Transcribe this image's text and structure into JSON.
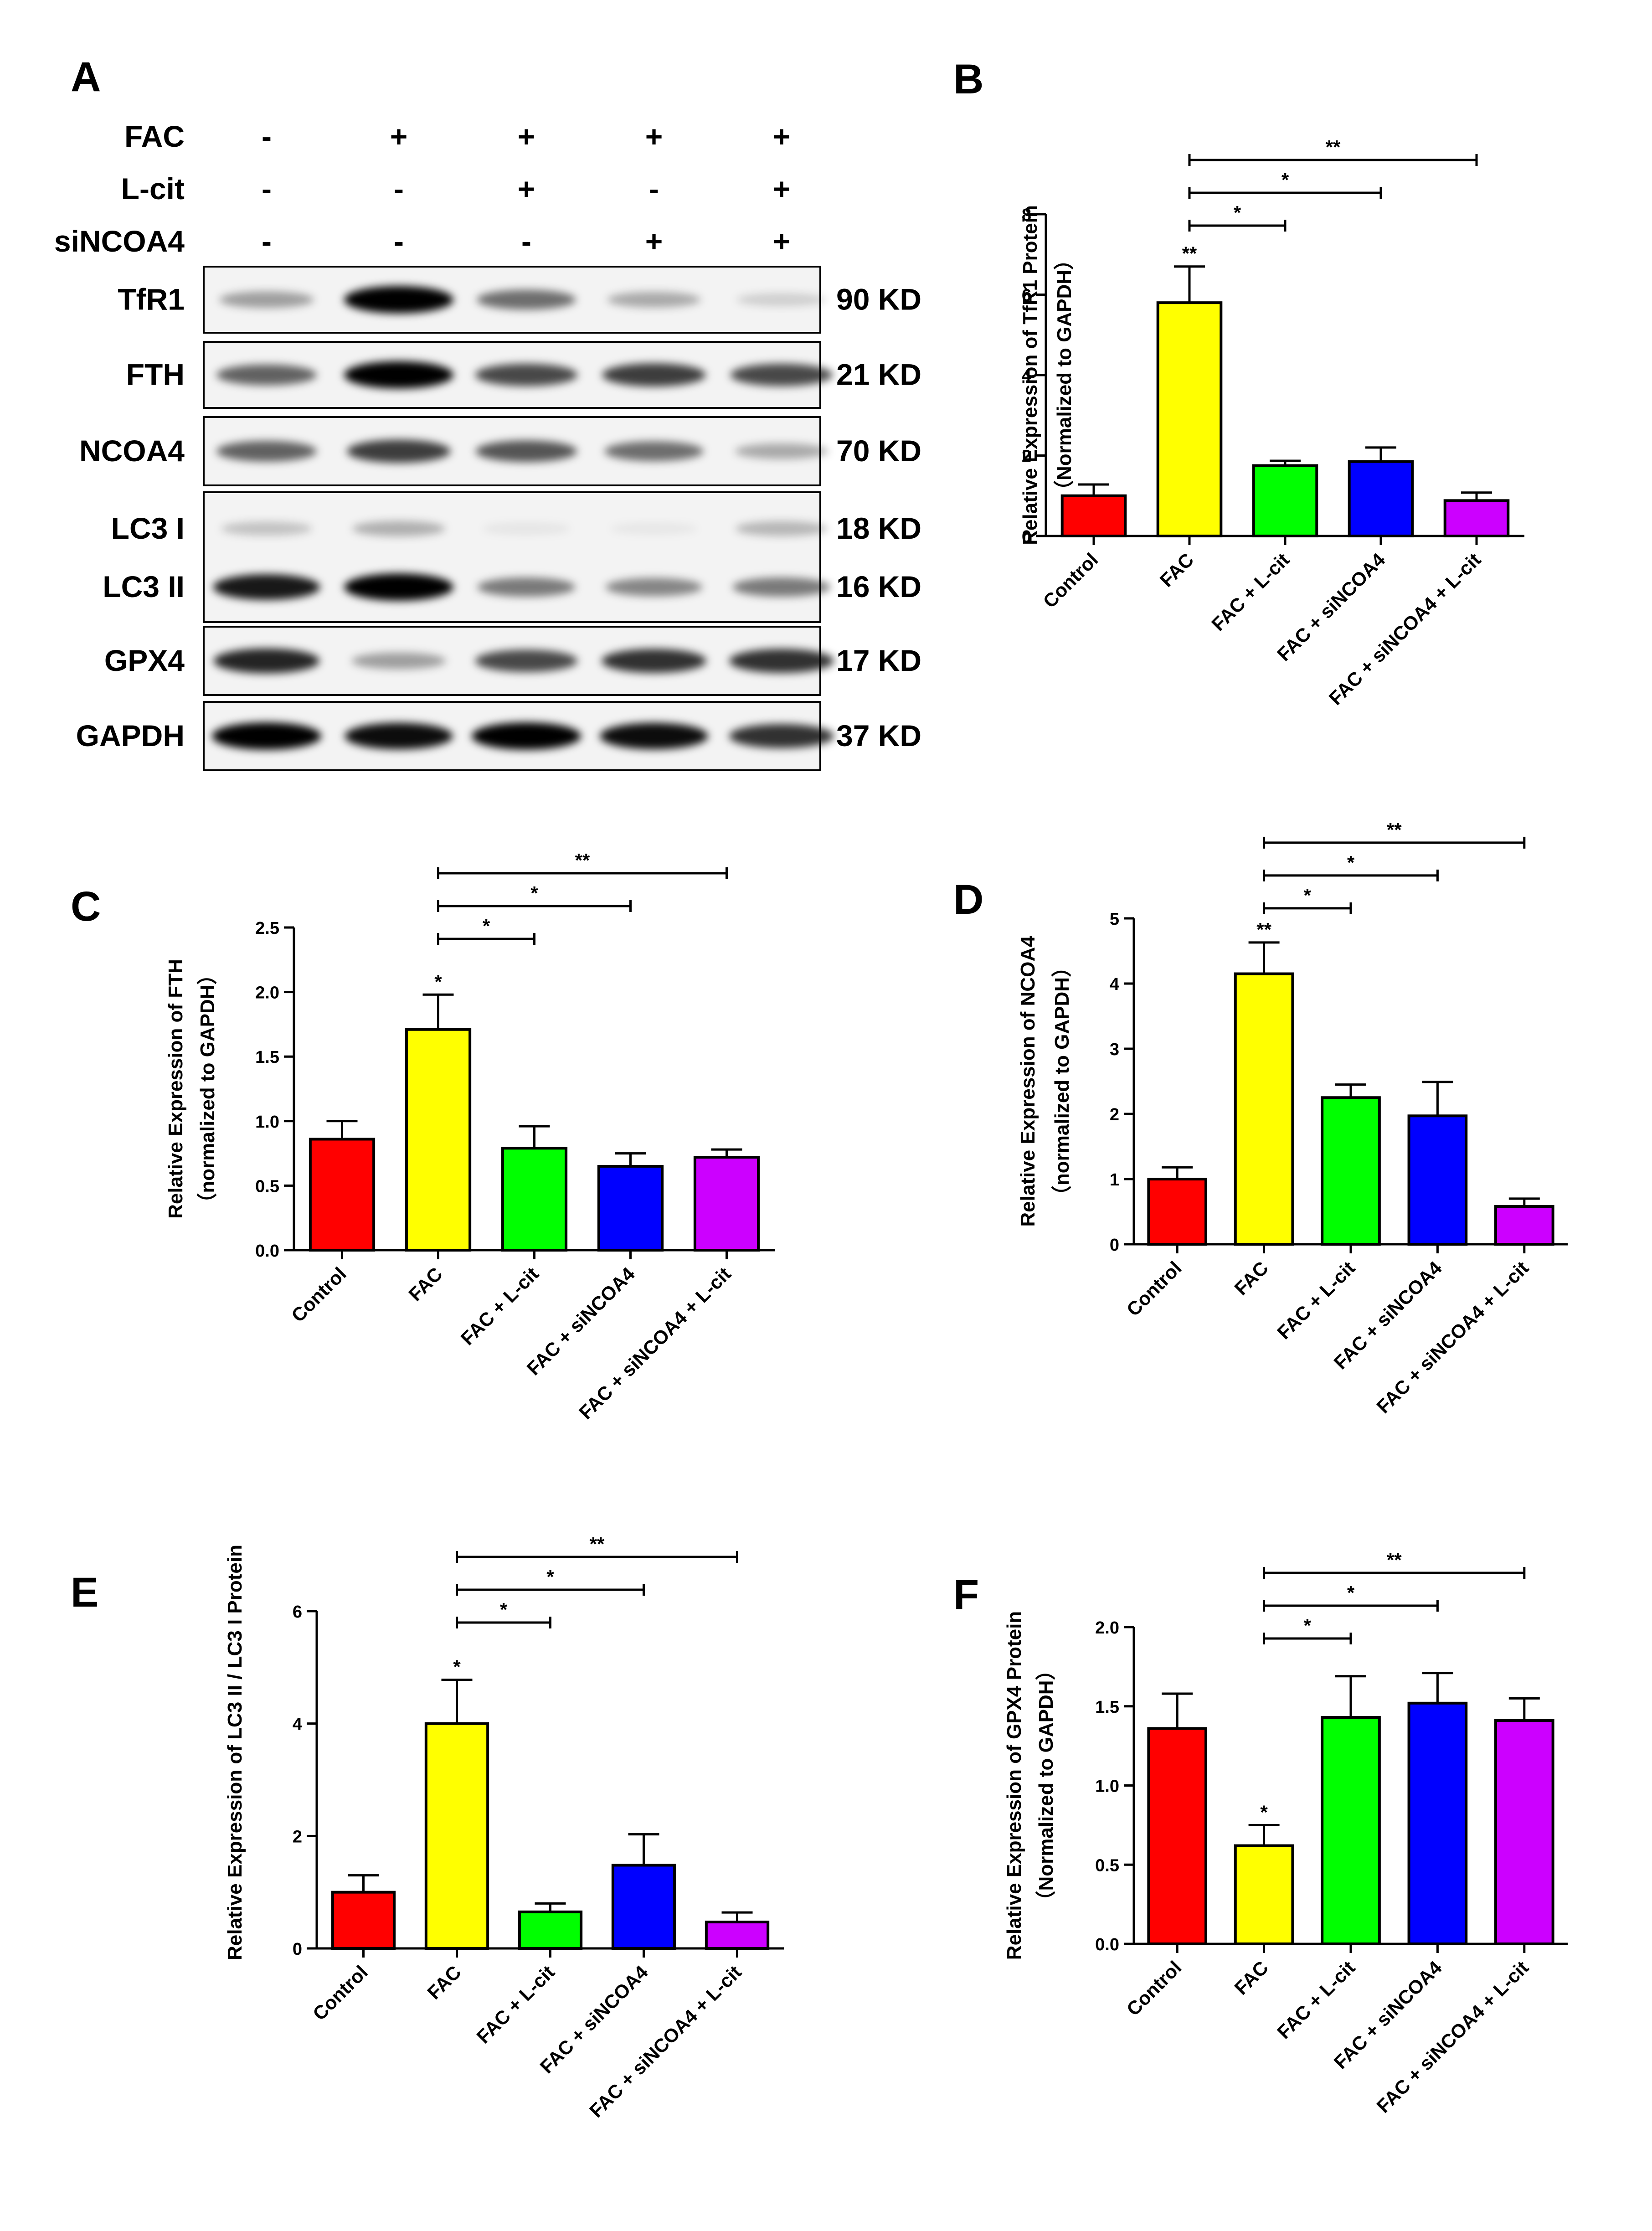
{
  "panel_letters": [
    "A",
    "B",
    "C",
    "D",
    "E",
    "F"
  ],
  "western_blot": {
    "treatments": [
      {
        "label": "FAC",
        "marks": [
          "-",
          "+",
          "+",
          "+",
          "+"
        ]
      },
      {
        "label": "L-cit",
        "marks": [
          "-",
          "-",
          "+",
          "-",
          "+"
        ]
      },
      {
        "label": "siNCOA4",
        "marks": [
          "-",
          "-",
          "-",
          "+",
          "+"
        ]
      }
    ],
    "blots": [
      {
        "rows": [
          {
            "label": "TfR1",
            "size": "90 KD"
          }
        ]
      },
      {
        "rows": [
          {
            "label": "FTH",
            "size": "21 KD"
          }
        ]
      },
      {
        "rows": [
          {
            "label": "NCOA4",
            "size": "70 KD"
          }
        ]
      },
      {
        "rows": [
          {
            "label": "LC3 I",
            "size": "18 KD"
          },
          {
            "label": "LC3 II",
            "size": "16 KD"
          }
        ]
      },
      {
        "rows": [
          {
            "label": "GPX4",
            "size": "17 KD"
          }
        ]
      },
      {
        "rows": [
          {
            "label": "GAPDH",
            "size": "37 KD"
          }
        ]
      }
    ],
    "band_intensity": [
      [
        0.35,
        1.0,
        0.55,
        0.3,
        0.15
      ],
      [
        0.6,
        1.0,
        0.7,
        0.75,
        0.7
      ],
      [
        0.6,
        0.75,
        0.65,
        0.55,
        0.3
      ],
      [
        0.2,
        0.28,
        0.06,
        0.05,
        0.25
      ],
      [
        0.9,
        1.0,
        0.5,
        0.45,
        0.5
      ],
      [
        0.85,
        0.35,
        0.7,
        0.8,
        0.8
      ],
      [
        1.0,
        0.95,
        1.0,
        0.95,
        0.8
      ]
    ]
  },
  "bar_colors": [
    "#ff0000",
    "#ffff00",
    "#00ff00",
    "#0000ff",
    "#cc00ff"
  ],
  "chart_data": [
    {
      "panel": "B",
      "type": "bar",
      "categories": [
        "Control",
        "FAC",
        "FAC + L-cit",
        "FAC + siNCOA4",
        "FAC + siNCOA4 + L-cit"
      ],
      "values": [
        1.0,
        5.8,
        1.75,
        1.85,
        0.88
      ],
      "errors": [
        0.28,
        0.9,
        0.12,
        0.35,
        0.2
      ],
      "ylabel": "Relative Expression of TfR1 Protein",
      "ylabel2": "（Normalized to GAPDH）",
      "ylim": [
        0,
        8
      ],
      "yticks": [
        "0",
        "2",
        "4",
        "6",
        "8"
      ],
      "bar_marks": [
        "",
        "**",
        "",
        "",
        ""
      ],
      "comparisons": [
        {
          "from": 1,
          "to": 2,
          "mark": "*"
        },
        {
          "from": 1,
          "to": 3,
          "mark": "*"
        },
        {
          "from": 1,
          "to": 4,
          "mark": "**"
        }
      ]
    },
    {
      "panel": "C",
      "type": "bar",
      "categories": [
        "Control",
        "FAC",
        "FAC + L-cit",
        "FAC + siNCOA4",
        "FAC + siNCOA4 + L-cit"
      ],
      "values": [
        0.86,
        1.71,
        0.79,
        0.65,
        0.72
      ],
      "errors": [
        0.14,
        0.27,
        0.17,
        0.1,
        0.06
      ],
      "ylabel": "Relative Expression of FTH",
      "ylabel2": "（normalized to GAPDH）",
      "ylim": [
        0,
        2.5
      ],
      "yticks": [
        "0.0",
        "0.5",
        "1.0",
        "1.5",
        "2.0",
        "2.5"
      ],
      "bar_marks": [
        "",
        "*",
        "",
        "",
        ""
      ],
      "comparisons": [
        {
          "from": 1,
          "to": 2,
          "mark": "*"
        },
        {
          "from": 1,
          "to": 3,
          "mark": "*"
        },
        {
          "from": 1,
          "to": 4,
          "mark": "**"
        }
      ]
    },
    {
      "panel": "D",
      "type": "bar",
      "categories": [
        "Control",
        "FAC",
        "FAC + L-cit",
        "FAC + siNCOA4",
        "FAC + siNCOA4 + L-cit"
      ],
      "values": [
        1.0,
        4.15,
        2.25,
        1.97,
        0.58
      ],
      "errors": [
        0.18,
        0.48,
        0.2,
        0.52,
        0.12
      ],
      "ylabel": "Relative Expression of NCOA4",
      "ylabel2": "（normalized to GAPDH）",
      "ylim": [
        0,
        5
      ],
      "yticks": [
        "0",
        "1",
        "2",
        "3",
        "4",
        "5"
      ],
      "bar_marks": [
        "",
        "**",
        "",
        "",
        ""
      ],
      "comparisons": [
        {
          "from": 1,
          "to": 2,
          "mark": "*"
        },
        {
          "from": 1,
          "to": 3,
          "mark": "*"
        },
        {
          "from": 1,
          "to": 4,
          "mark": "**"
        }
      ]
    },
    {
      "panel": "E",
      "type": "bar",
      "categories": [
        "Control",
        "FAC",
        "FAC + L-cit",
        "FAC + siNCOA4",
        "FAC + siNCOA4 + L-cit"
      ],
      "values": [
        1.0,
        4.0,
        0.65,
        1.48,
        0.47
      ],
      "errors": [
        0.3,
        0.78,
        0.15,
        0.55,
        0.17
      ],
      "ylabel": "Relative Expression of LC3 II / LC3 I Protein",
      "ylabel2": "",
      "ylim": [
        0,
        6
      ],
      "yticks": [
        "0",
        "2",
        "4",
        "6"
      ],
      "bar_marks": [
        "",
        "*",
        "",
        "",
        ""
      ],
      "comparisons": [
        {
          "from": 1,
          "to": 2,
          "mark": "*"
        },
        {
          "from": 1,
          "to": 3,
          "mark": "*"
        },
        {
          "from": 1,
          "to": 4,
          "mark": "**"
        }
      ]
    },
    {
      "panel": "F",
      "type": "bar",
      "categories": [
        "Control",
        "FAC",
        "FAC + L-cit",
        "FAC + siNCOA4",
        "FAC + siNCOA4 + L-cit"
      ],
      "values": [
        1.36,
        0.62,
        1.43,
        1.52,
        1.41
      ],
      "errors": [
        0.22,
        0.13,
        0.26,
        0.19,
        0.14
      ],
      "ylabel": "Relative Expression of GPX4 Protein",
      "ylabel2": "（Normalized to GAPDH）",
      "ylim": [
        0,
        2.0
      ],
      "yticks": [
        "0.0",
        "0.5",
        "1.0",
        "1.5",
        "2.0"
      ],
      "bar_marks": [
        "",
        "*",
        "",
        "",
        ""
      ],
      "comparisons": [
        {
          "from": 1,
          "to": 2,
          "mark": "*"
        },
        {
          "from": 1,
          "to": 3,
          "mark": "*"
        },
        {
          "from": 1,
          "to": 4,
          "mark": "**"
        }
      ]
    }
  ]
}
